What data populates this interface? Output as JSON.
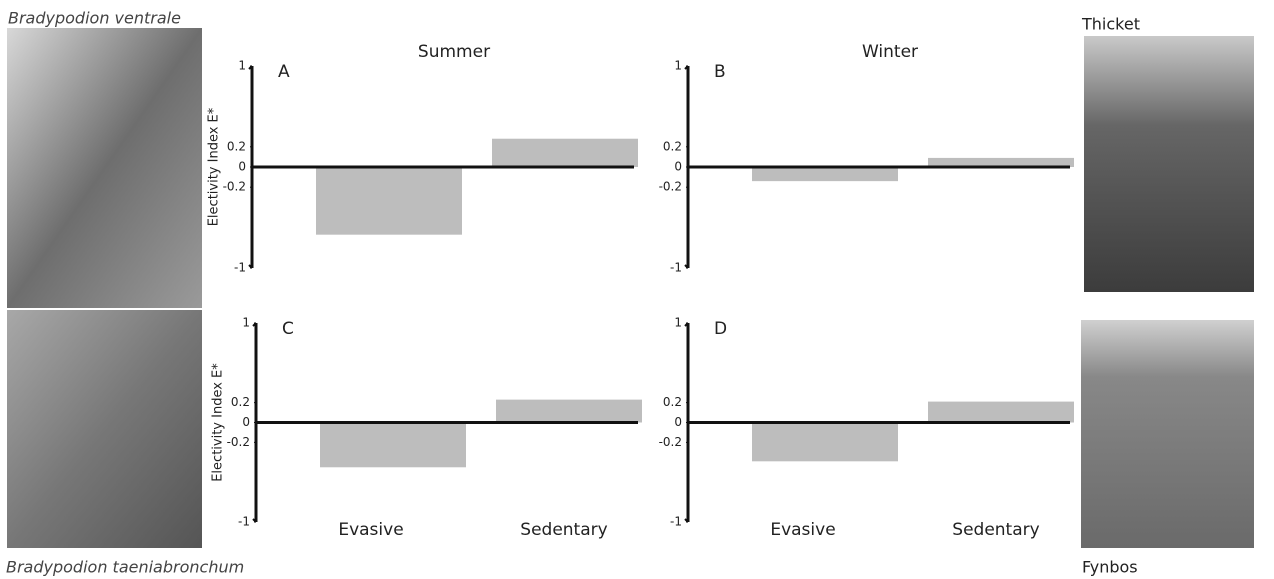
{
  "species": {
    "top": "Bradypodion ventrale",
    "bottom": "Bradypodion taeniabronchum"
  },
  "habitats": {
    "top": "Thicket",
    "bottom": "Fynbos"
  },
  "chart_data": [
    {
      "type": "bar",
      "panel": "A",
      "title": "Summer",
      "ylabel": "Electivity Index E*",
      "categories": [
        null,
        null
      ],
      "values": [
        -0.67,
        0.28
      ],
      "color": "#bdbdbd",
      "ylim": [
        -1,
        1
      ],
      "yticks": [
        1,
        0.2,
        0,
        -0.2,
        -1
      ]
    },
    {
      "type": "bar",
      "panel": "B",
      "title": "Winter",
      "categories": [
        null,
        null
      ],
      "values": [
        -0.14,
        0.09
      ],
      "color": "#bdbdbd",
      "ylim": [
        -1,
        1
      ],
      "yticks": [
        1,
        0.2,
        0,
        -0.2,
        -1
      ]
    },
    {
      "type": "bar",
      "panel": "C",
      "ylabel": "Electivity Index E*",
      "categories": [
        "Evasive",
        "Sedentary"
      ],
      "values": [
        -0.45,
        0.23
      ],
      "color": "#bdbdbd",
      "ylim": [
        -1,
        1
      ],
      "yticks": [
        1,
        0.2,
        0,
        -0.2,
        -1
      ]
    },
    {
      "type": "bar",
      "panel": "D",
      "categories": [
        "Evasive",
        "Sedentary"
      ],
      "values": [
        -0.39,
        0.21
      ],
      "color": "#bdbdbd",
      "ylim": [
        -1,
        1
      ],
      "yticks": [
        1,
        0.2,
        0,
        -0.2,
        -1
      ]
    }
  ]
}
